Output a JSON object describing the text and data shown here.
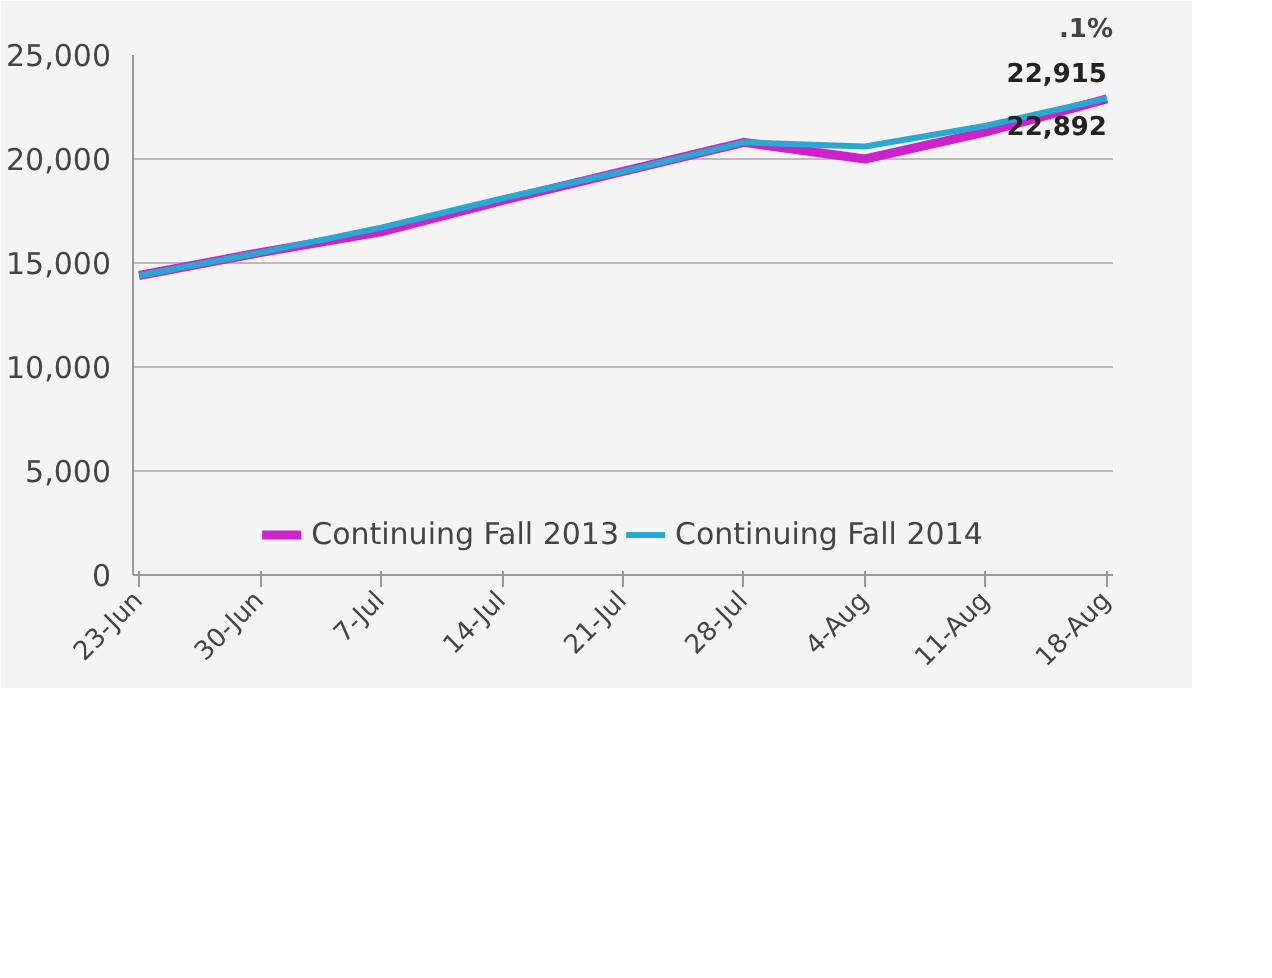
{
  "chart_data": {
    "type": "line",
    "categories": [
      "23-Jun",
      "30-Jun",
      "7-Jul",
      "14-Jul",
      "21-Jul",
      "28-Jul",
      "4-Aug",
      "11-Aug",
      "18-Aug"
    ],
    "series": [
      {
        "name": "Continuing Fall 2013",
        "color": "#cc22cc",
        "values": [
          14400,
          15500,
          16500,
          18000,
          19400,
          20800,
          20000,
          21300,
          22892
        ],
        "value_labels": [
          null,
          null,
          null,
          null,
          null,
          null,
          null,
          null,
          "22,892"
        ]
      },
      {
        "name": "Continuing Fall 2014",
        "color": "#2aa8d0",
        "values": [
          14400,
          15500,
          16700,
          18100,
          19400,
          20800,
          20600,
          21600,
          22915
        ],
        "value_labels": [
          null,
          null,
          null,
          null,
          null,
          null,
          null,
          null,
          "22,915"
        ]
      }
    ],
    "ylim": [
      0,
      25000
    ],
    "yticks": [
      0,
      {
        "value": 5000,
        "label": "5,000"
      },
      {
        "value": 10000,
        "label": "10,000"
      },
      {
        "value": 15000,
        "label": "15,000"
      },
      {
        "value": 20000,
        "label": "20,000"
      },
      {
        "value": 25000,
        "label": "25,000"
      }
    ],
    "grid": "y",
    "legend": "bottom",
    "marker": "none",
    "line_style": "solid",
    "annotations": [
      ".1%"
    ]
  }
}
